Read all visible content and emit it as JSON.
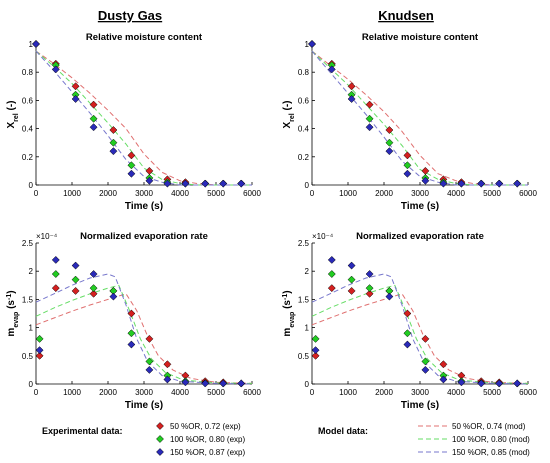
{
  "column_titles": [
    "Dusty Gas",
    "Knudsen"
  ],
  "legends": {
    "experimental": {
      "heading": "Experimental data:",
      "entries": [
        "50 %OR, 0.72 (exp)",
        "100 %OR, 0.80 (exp)",
        "150 %OR, 0.87 (exp)"
      ]
    },
    "model": {
      "heading": "Model data:",
      "entries": [
        "50 %OR, 0.74 (mod)",
        "100 %OR, 0.80 (mod)",
        "150 %OR, 0.85 (mod)"
      ]
    }
  },
  "colors": {
    "red": "#d42020",
    "green": "#22cc22",
    "blue": "#2a2ab8",
    "model_red": "#e07070",
    "model_green": "#66dd66",
    "model_blue": "#7777cc",
    "marker_edge": "#000000",
    "axis": "#000000"
  },
  "chart_data": [
    {
      "type": "scatter",
      "title": "Relative moisture content",
      "xlabel": "Time (s)",
      "ylabel": "X_rel (-)",
      "xlim": [
        0,
        6000
      ],
      "ylim": [
        0,
        1
      ],
      "xticks": [
        "0",
        "1000",
        "2000",
        "3000",
        "4000",
        "5000",
        "6000"
      ],
      "yticks": [
        "0",
        "0.2",
        "0.4",
        "0.6",
        "0.8",
        "1"
      ],
      "grid": false,
      "series": [
        {
          "name": "50 %OR, 0.72 (exp)",
          "kind": "experimental",
          "color": "red",
          "x": [
            0,
            550,
            1100,
            1600,
            2150,
            2650,
            3150,
            3650,
            4150,
            4700,
            5200,
            5700
          ],
          "y": [
            1.0,
            0.86,
            0.7,
            0.57,
            0.39,
            0.21,
            0.1,
            0.04,
            0.02,
            0.01,
            0.01,
            0.01
          ]
        },
        {
          "name": "100 %OR, 0.80 (exp)",
          "kind": "experimental",
          "color": "green",
          "x": [
            0,
            550,
            1100,
            1600,
            2150,
            2650,
            3150,
            3650,
            4150,
            4700,
            5200,
            5700
          ],
          "y": [
            1.0,
            0.85,
            0.64,
            0.47,
            0.3,
            0.14,
            0.05,
            0.02,
            0.01,
            0.01,
            0.01,
            0.01
          ]
        },
        {
          "name": "150 %OR, 0.87 (exp)",
          "kind": "experimental",
          "color": "blue",
          "x": [
            0,
            550,
            1100,
            1600,
            2150,
            2650,
            3150,
            3650,
            4150,
            4700,
            5200,
            5700
          ],
          "y": [
            1.0,
            0.82,
            0.61,
            0.41,
            0.24,
            0.08,
            0.03,
            0.01,
            0.01,
            0.01,
            0.01,
            0.01
          ]
        },
        {
          "name": "50 %OR, 0.74 (mod)",
          "kind": "model",
          "color": "model_red",
          "x": [
            0,
            500,
            1000,
            1500,
            2000,
            2500,
            3000,
            3500,
            4000,
            4500,
            5000,
            5500,
            6000
          ],
          "y": [
            0.95,
            0.86,
            0.76,
            0.65,
            0.53,
            0.4,
            0.22,
            0.09,
            0.03,
            0.01,
            0.0,
            0.0,
            0.0
          ]
        },
        {
          "name": "100 %OR, 0.80 (mod)",
          "kind": "model",
          "color": "model_green",
          "x": [
            0,
            500,
            1000,
            1500,
            2000,
            2500,
            3000,
            3500,
            4000,
            4500,
            5000,
            5500,
            6000
          ],
          "y": [
            0.95,
            0.84,
            0.72,
            0.58,
            0.44,
            0.29,
            0.12,
            0.04,
            0.01,
            0.0,
            0.0,
            0.0,
            0.0
          ]
        },
        {
          "name": "150 %OR, 0.85 (mod)",
          "kind": "model",
          "color": "model_blue",
          "x": [
            0,
            500,
            1000,
            1500,
            2000,
            2500,
            3000,
            3500,
            4000,
            4500,
            5000,
            5500,
            6000
          ],
          "y": [
            0.95,
            0.81,
            0.66,
            0.51,
            0.35,
            0.18,
            0.06,
            0.02,
            0.0,
            0.0,
            0.0,
            0.0,
            0.0
          ]
        }
      ]
    },
    {
      "type": "scatter",
      "title": "Relative moisture content",
      "xlabel": "Time (s)",
      "ylabel": "X_rel (-)",
      "xlim": [
        0,
        6000
      ],
      "ylim": [
        0,
        1
      ],
      "xticks": [
        "0",
        "1000",
        "2000",
        "3000",
        "4000",
        "5000",
        "6000"
      ],
      "yticks": [
        "0",
        "0.2",
        "0.4",
        "0.6",
        "0.8",
        "1"
      ],
      "grid": false,
      "series": [
        {
          "name": "50 %OR, 0.72 (exp)",
          "kind": "experimental",
          "color": "red",
          "x": [
            0,
            550,
            1100,
            1600,
            2150,
            2650,
            3150,
            3650,
            4150,
            4700,
            5200,
            5700
          ],
          "y": [
            1.0,
            0.86,
            0.7,
            0.57,
            0.39,
            0.21,
            0.1,
            0.04,
            0.02,
            0.01,
            0.01,
            0.01
          ]
        },
        {
          "name": "100 %OR, 0.80 (exp)",
          "kind": "experimental",
          "color": "green",
          "x": [
            0,
            550,
            1100,
            1600,
            2150,
            2650,
            3150,
            3650,
            4150,
            4700,
            5200,
            5700
          ],
          "y": [
            1.0,
            0.85,
            0.64,
            0.47,
            0.3,
            0.14,
            0.05,
            0.02,
            0.01,
            0.01,
            0.01,
            0.01
          ]
        },
        {
          "name": "150 %OR, 0.87 (exp)",
          "kind": "experimental",
          "color": "blue",
          "x": [
            0,
            550,
            1100,
            1600,
            2150,
            2650,
            3150,
            3650,
            4150,
            4700,
            5200,
            5700
          ],
          "y": [
            1.0,
            0.82,
            0.61,
            0.41,
            0.24,
            0.08,
            0.03,
            0.01,
            0.01,
            0.01,
            0.01,
            0.01
          ]
        },
        {
          "name": "50 %OR, 0.74 (mod)",
          "kind": "model",
          "color": "model_red",
          "x": [
            0,
            500,
            1000,
            1500,
            2000,
            2500,
            3000,
            3500,
            4000,
            4500,
            5000,
            5500,
            6000
          ],
          "y": [
            0.95,
            0.85,
            0.75,
            0.64,
            0.52,
            0.38,
            0.21,
            0.08,
            0.03,
            0.01,
            0.0,
            0.0,
            0.0
          ]
        },
        {
          "name": "100 %OR, 0.80 (mod)",
          "kind": "model",
          "color": "model_green",
          "x": [
            0,
            500,
            1000,
            1500,
            2000,
            2500,
            3000,
            3500,
            4000,
            4500,
            5000,
            5500,
            6000
          ],
          "y": [
            0.95,
            0.83,
            0.71,
            0.57,
            0.43,
            0.28,
            0.11,
            0.04,
            0.01,
            0.0,
            0.0,
            0.0,
            0.0
          ]
        },
        {
          "name": "150 %OR, 0.85 (mod)",
          "kind": "model",
          "color": "model_blue",
          "x": [
            0,
            500,
            1000,
            1500,
            2000,
            2500,
            3000,
            3500,
            4000,
            4500,
            5000,
            5500,
            6000
          ],
          "y": [
            0.95,
            0.8,
            0.65,
            0.5,
            0.34,
            0.17,
            0.06,
            0.02,
            0.0,
            0.0,
            0.0,
            0.0,
            0.0
          ]
        }
      ]
    },
    {
      "type": "scatter",
      "title": "Normalized evaporation rate",
      "xlabel": "Time (s)",
      "ylabel": "m_evap (s^-1)",
      "multiplier": "×10⁻⁴",
      "xlim": [
        0,
        6000
      ],
      "ylim": [
        0,
        2.5
      ],
      "xticks": [
        "0",
        "1000",
        "2000",
        "3000",
        "4000",
        "5000",
        "6000"
      ],
      "yticks": [
        "0",
        "0.5",
        "1",
        "1.5",
        "2",
        "2.5"
      ],
      "grid": false,
      "series": [
        {
          "name": "50 %OR, 0.72 (exp)",
          "kind": "experimental",
          "color": "red",
          "x": [
            100,
            550,
            1100,
            1600,
            2150,
            2650,
            3150,
            3650,
            4150,
            4700,
            5200,
            5700
          ],
          "y": [
            0.5,
            1.7,
            1.65,
            1.6,
            1.65,
            1.25,
            0.8,
            0.35,
            0.15,
            0.05,
            0.03,
            0.01
          ]
        },
        {
          "name": "100 %OR, 0.80 (exp)",
          "kind": "experimental",
          "color": "green",
          "x": [
            100,
            550,
            1100,
            1600,
            2150,
            2650,
            3150,
            3650,
            4150,
            4700,
            5200,
            5700
          ],
          "y": [
            0.8,
            1.95,
            1.85,
            1.7,
            1.65,
            0.9,
            0.4,
            0.15,
            0.05,
            0.02,
            0.01,
            0.01
          ]
        },
        {
          "name": "150 %OR, 0.87 (exp)",
          "kind": "experimental",
          "color": "blue",
          "x": [
            100,
            550,
            1100,
            1600,
            2150,
            2650,
            3150,
            3650,
            4150,
            4700,
            5200,
            5700
          ],
          "y": [
            0.6,
            2.2,
            2.1,
            1.95,
            1.55,
            0.7,
            0.25,
            0.08,
            0.03,
            0.01,
            0.01,
            0.01
          ]
        },
        {
          "name": "50 %OR, 0.74 (mod)",
          "kind": "model",
          "color": "model_red",
          "x": [
            0,
            500,
            1000,
            1500,
            2000,
            2500,
            2800,
            3100,
            3400,
            3800,
            4300,
            5000,
            6000
          ],
          "y": [
            1.05,
            1.17,
            1.29,
            1.4,
            1.5,
            1.6,
            1.3,
            0.85,
            0.5,
            0.25,
            0.1,
            0.03,
            0.01
          ]
        },
        {
          "name": "100 %OR, 0.80 (mod)",
          "kind": "model",
          "color": "model_green",
          "x": [
            0,
            500,
            1000,
            1500,
            2000,
            2300,
            2600,
            2900,
            3200,
            3600,
            4100,
            5000,
            6000
          ],
          "y": [
            1.2,
            1.35,
            1.48,
            1.6,
            1.7,
            1.75,
            1.3,
            0.8,
            0.45,
            0.2,
            0.07,
            0.02,
            0.01
          ]
        },
        {
          "name": "150 %OR, 0.85 (mod)",
          "kind": "model",
          "color": "model_blue",
          "x": [
            0,
            500,
            1000,
            1500,
            2000,
            2200,
            2500,
            2800,
            3100,
            3500,
            4000,
            5000,
            6000
          ],
          "y": [
            1.45,
            1.6,
            1.75,
            1.88,
            1.95,
            1.9,
            1.4,
            0.8,
            0.4,
            0.15,
            0.05,
            0.01,
            0.0
          ]
        }
      ]
    },
    {
      "type": "scatter",
      "title": "Normalized evaporation rate",
      "xlabel": "Time (s)",
      "ylabel": "m_evap (s^-1)",
      "multiplier": "×10⁻⁴",
      "xlim": [
        0,
        6000
      ],
      "ylim": [
        0,
        2.5
      ],
      "xticks": [
        "0",
        "1000",
        "2000",
        "3000",
        "4000",
        "5000",
        "6000"
      ],
      "yticks": [
        "0",
        "0.5",
        "1",
        "1.5",
        "2",
        "2.5"
      ],
      "grid": false,
      "series": [
        {
          "name": "50 %OR, 0.72 (exp)",
          "kind": "experimental",
          "color": "red",
          "x": [
            100,
            550,
            1100,
            1600,
            2150,
            2650,
            3150,
            3650,
            4150,
            4700,
            5200,
            5700
          ],
          "y": [
            0.5,
            1.7,
            1.65,
            1.6,
            1.65,
            1.25,
            0.8,
            0.35,
            0.15,
            0.05,
            0.03,
            0.01
          ]
        },
        {
          "name": "100 %OR, 0.80 (exp)",
          "kind": "experimental",
          "color": "green",
          "x": [
            100,
            550,
            1100,
            1600,
            2150,
            2650,
            3150,
            3650,
            4150,
            4700,
            5200,
            5700
          ],
          "y": [
            0.8,
            1.95,
            1.85,
            1.7,
            1.65,
            0.9,
            0.4,
            0.15,
            0.05,
            0.02,
            0.01,
            0.01
          ]
        },
        {
          "name": "150 %OR, 0.87 (exp)",
          "kind": "experimental",
          "color": "blue",
          "x": [
            100,
            550,
            1100,
            1600,
            2150,
            2650,
            3150,
            3650,
            4150,
            4700,
            5200,
            5700
          ],
          "y": [
            0.6,
            2.2,
            2.1,
            1.95,
            1.55,
            0.7,
            0.25,
            0.08,
            0.03,
            0.01,
            0.01,
            0.01
          ]
        },
        {
          "name": "50 %OR, 0.74 (mod)",
          "kind": "model",
          "color": "model_red",
          "x": [
            0,
            500,
            1000,
            1500,
            2000,
            2500,
            2800,
            3100,
            3400,
            3800,
            4300,
            5000,
            6000
          ],
          "y": [
            1.05,
            1.17,
            1.29,
            1.4,
            1.5,
            1.6,
            1.3,
            0.85,
            0.5,
            0.25,
            0.1,
            0.03,
            0.01
          ]
        },
        {
          "name": "100 %OR, 0.80 (mod)",
          "kind": "model",
          "color": "model_green",
          "x": [
            0,
            500,
            1000,
            1500,
            2000,
            2300,
            2600,
            2900,
            3200,
            3600,
            4100,
            5000,
            6000
          ],
          "y": [
            1.2,
            1.35,
            1.48,
            1.6,
            1.7,
            1.75,
            1.3,
            0.8,
            0.45,
            0.2,
            0.07,
            0.02,
            0.01
          ]
        },
        {
          "name": "150 %OR, 0.85 (mod)",
          "kind": "model",
          "color": "model_blue",
          "x": [
            0,
            500,
            1000,
            1500,
            2000,
            2200,
            2500,
            2800,
            3100,
            3500,
            4000,
            5000,
            6000
          ],
          "y": [
            1.45,
            1.6,
            1.75,
            1.88,
            1.95,
            1.9,
            1.4,
            0.8,
            0.4,
            0.15,
            0.05,
            0.01,
            0.0
          ]
        }
      ]
    }
  ]
}
